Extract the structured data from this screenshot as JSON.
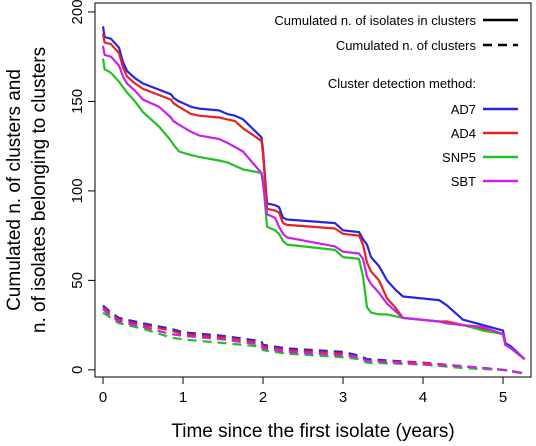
{
  "chart_data": {
    "type": "line",
    "xlabel": "Time since the first isolate (years)",
    "ylabel_line1": "Cumulated n. of clusters and",
    "ylabel_line2": "n. of isolates belonging to clusters",
    "xlim": [
      -0.1,
      5.35
    ],
    "ylim": [
      -4,
      205
    ],
    "xticks": [
      0,
      1,
      2,
      3,
      4,
      5
    ],
    "yticks": [
      0,
      50,
      100,
      150,
      200
    ],
    "grid": false,
    "legend_placement": "top-right",
    "legend": {
      "linetype_items": [
        {
          "label": "Cumulated n. of isolates in clusters",
          "style": "solid"
        },
        {
          "label": "Cumulated n. of clusters",
          "style": "dashed"
        }
      ],
      "method_title": "Cluster detection method:",
      "method_items": [
        "AD7",
        "AD4",
        "SNP5",
        "SBT"
      ]
    },
    "series": [
      {
        "name": "AD7",
        "color": "#2626e0",
        "style": "solid",
        "x": [
          0,
          0.02,
          0.1,
          0.2,
          0.25,
          0.3,
          0.4,
          0.5,
          0.85,
          0.88,
          0.95,
          1.1,
          1.2,
          1.45,
          1.55,
          1.65,
          1.75,
          1.98,
          2.0,
          2.05,
          2.15,
          2.2,
          2.25,
          2.3,
          2.9,
          3.0,
          3.2,
          3.25,
          3.3,
          3.35,
          3.45,
          3.55,
          3.65,
          3.75,
          4.2,
          4.3,
          4.5,
          4.75,
          5.0,
          5.03,
          5.1,
          5.27
        ],
        "y": [
          192,
          186,
          185,
          180,
          172,
          167,
          163,
          160,
          154,
          152,
          150,
          147,
          146,
          145,
          143,
          142,
          140,
          130,
          123,
          93,
          92,
          91,
          85,
          84,
          82,
          78,
          77,
          73,
          70,
          63,
          58,
          50,
          45,
          41,
          39,
          36,
          28,
          25,
          22,
          15,
          13,
          6
        ]
      },
      {
        "name": "AD4",
        "color": "#e62222",
        "style": "solid",
        "x": [
          0,
          0.02,
          0.1,
          0.2,
          0.25,
          0.3,
          0.4,
          0.5,
          0.85,
          0.88,
          0.95,
          1.1,
          1.2,
          1.45,
          1.55,
          1.65,
          1.75,
          1.98,
          2.0,
          2.05,
          2.15,
          2.2,
          2.25,
          2.3,
          2.9,
          3.0,
          3.2,
          3.25,
          3.3,
          3.35,
          3.45,
          3.55,
          3.65,
          3.75,
          4.2,
          4.3,
          4.5,
          4.75,
          5.0,
          5.03,
          5.1,
          5.27
        ],
        "y": [
          188,
          183,
          182,
          177,
          169,
          164,
          160,
          157,
          151,
          149,
          147,
          143,
          142,
          141,
          140,
          139,
          135,
          128,
          121,
          90,
          89,
          88,
          82,
          81,
          79,
          76,
          75,
          70,
          60,
          55,
          50,
          40,
          35,
          29,
          27,
          27,
          25,
          23,
          20,
          14,
          12,
          6
        ]
      },
      {
        "name": "SNP5",
        "color": "#22c022",
        "style": "solid",
        "x": [
          0,
          0.02,
          0.1,
          0.2,
          0.25,
          0.3,
          0.4,
          0.5,
          0.7,
          0.85,
          0.88,
          0.95,
          1.1,
          1.2,
          1.45,
          1.55,
          1.75,
          1.98,
          2.0,
          2.05,
          2.15,
          2.2,
          2.25,
          2.3,
          2.9,
          3.0,
          3.2,
          3.25,
          3.3,
          3.35,
          3.45,
          3.55,
          3.65,
          3.75,
          4.2,
          4.3,
          4.5,
          4.75,
          5.0,
          5.03,
          5.1,
          5.27
        ],
        "y": [
          174,
          168,
          166,
          161,
          158,
          155,
          150,
          144,
          136,
          128,
          126,
          122,
          120,
          119,
          117,
          116,
          112,
          110,
          106,
          80,
          78,
          76,
          72,
          70,
          67,
          63,
          62,
          52,
          35,
          32,
          31,
          31,
          30,
          29,
          27,
          26,
          25,
          22,
          20,
          14,
          12,
          6
        ]
      },
      {
        "name": "SBT",
        "color": "#c822e8",
        "style": "solid",
        "x": [
          0,
          0.02,
          0.1,
          0.2,
          0.25,
          0.3,
          0.4,
          0.5,
          0.7,
          0.85,
          0.88,
          0.95,
          1.1,
          1.2,
          1.45,
          1.55,
          1.75,
          1.98,
          2.0,
          2.05,
          2.15,
          2.2,
          2.25,
          2.3,
          2.9,
          3.0,
          3.2,
          3.25,
          3.3,
          3.35,
          3.45,
          3.55,
          3.65,
          3.75,
          4.2,
          4.3,
          4.5,
          4.75,
          5.0,
          5.03,
          5.1,
          5.27
        ],
        "y": [
          181,
          176,
          175,
          170,
          164,
          160,
          156,
          151,
          147,
          141,
          139,
          137,
          133,
          131,
          129,
          127,
          122,
          110,
          104,
          87,
          85,
          80,
          76,
          74,
          69,
          66,
          65,
          62,
          52,
          48,
          43,
          37,
          33,
          29,
          27,
          26,
          25,
          24,
          20,
          14,
          12,
          6
        ]
      },
      {
        "name": "AD7 clusters",
        "color": "#2626e0",
        "style": "dashed",
        "x": [
          0,
          0.1,
          0.2,
          0.5,
          0.85,
          1.0,
          1.5,
          1.98,
          2.0,
          2.3,
          3.0,
          3.2,
          3.3,
          4.0,
          4.5,
          5.0,
          5.27
        ],
        "y": [
          36,
          32,
          29,
          26,
          23,
          21,
          19,
          16,
          14,
          12,
          10,
          8,
          6,
          4,
          2,
          0,
          -2
        ]
      },
      {
        "name": "AD4 clusters",
        "color": "#e62222",
        "style": "dashed",
        "x": [
          0,
          0.1,
          0.2,
          0.5,
          0.85,
          1.0,
          1.5,
          1.98,
          2.0,
          2.3,
          3.0,
          3.2,
          3.3,
          4.0,
          4.5,
          5.0,
          5.27
        ],
        "y": [
          35,
          31,
          28,
          25,
          22,
          20,
          18,
          15,
          13,
          11,
          9,
          7,
          5,
          4,
          2,
          0,
          -2
        ]
      },
      {
        "name": "SNP5 clusters",
        "color": "#22c022",
        "style": "dashed",
        "x": [
          0,
          0.1,
          0.2,
          0.5,
          0.85,
          1.0,
          1.5,
          1.98,
          2.0,
          2.3,
          3.0,
          3.2,
          3.3,
          4.0,
          4.5,
          5.0,
          5.27
        ],
        "y": [
          32,
          29,
          26,
          23,
          18,
          17,
          15,
          13,
          11,
          9,
          7,
          6,
          4,
          3,
          1,
          0,
          -2
        ]
      },
      {
        "name": "SBT clusters",
        "color": "#c822e8",
        "style": "dashed",
        "x": [
          0,
          0.1,
          0.2,
          0.5,
          0.85,
          1.0,
          1.5,
          1.98,
          2.0,
          2.3,
          3.0,
          3.2,
          3.3,
          4.0,
          4.5,
          5.0,
          5.27
        ],
        "y": [
          34,
          30,
          27,
          24,
          20,
          19,
          17,
          14,
          12,
          10,
          8,
          7,
          5,
          3,
          2,
          0,
          -2
        ]
      }
    ]
  }
}
